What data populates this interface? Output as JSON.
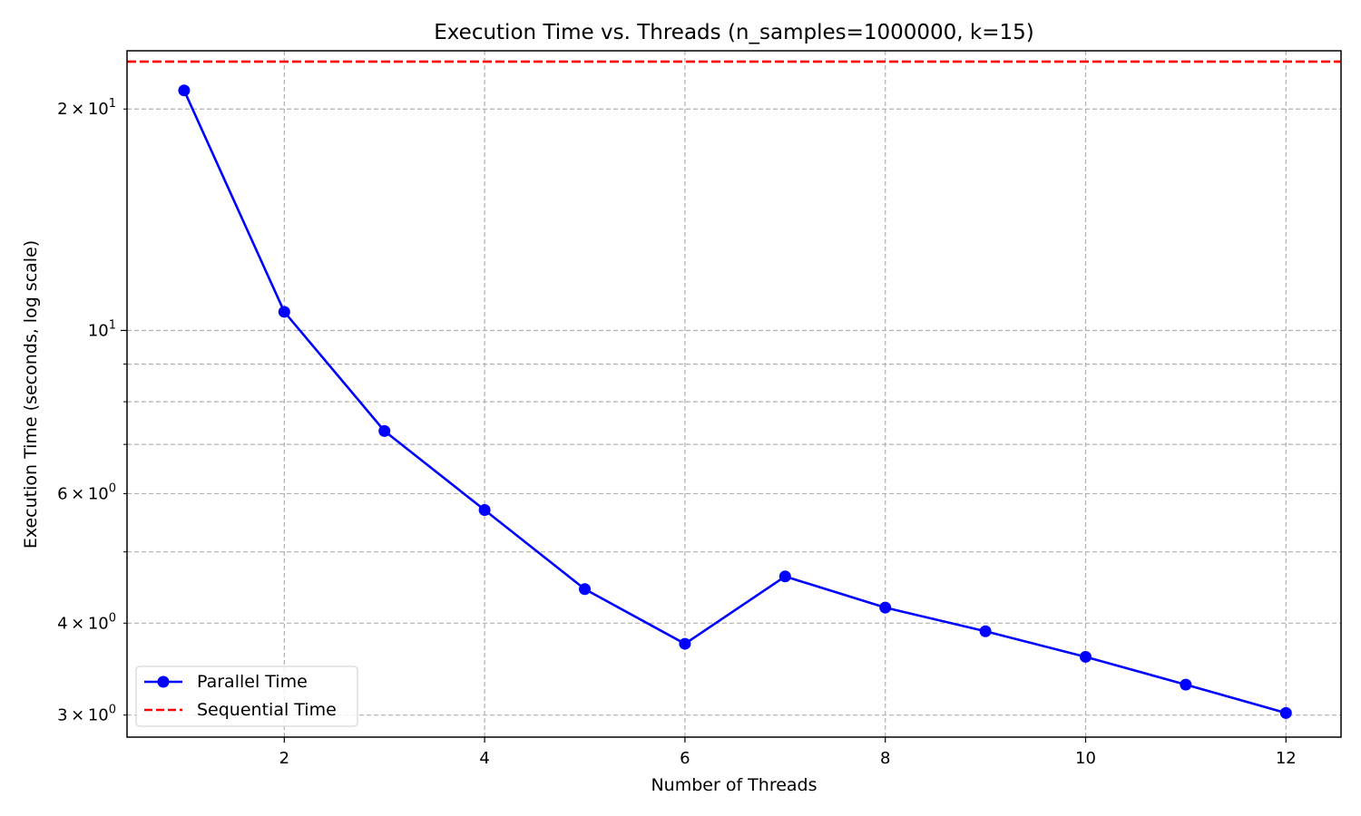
{
  "chart_data": {
    "type": "line",
    "title": "Execution Time vs. Threads (n_samples=1000000, k=15)",
    "xlabel": "Number of Threads",
    "ylabel": "Execution Time (seconds, log scale)",
    "xlim": [
      0.43,
      12.55
    ],
    "ylim": [
      2.8,
      24.0
    ],
    "y_scale": "log",
    "grid": true,
    "legend_position": "lower-left",
    "x_ticks": [
      2,
      4,
      6,
      8,
      10,
      12
    ],
    "x_tick_labels": [
      "2",
      "4",
      "6",
      "8",
      "10",
      "12"
    ],
    "y_major_ticks": [
      10
    ],
    "y_major_tick_labels": [
      {
        "base": "10",
        "exp": "1"
      }
    ],
    "y_minor_ticks": [
      3,
      4,
      5,
      6,
      7,
      8,
      9,
      20
    ],
    "y_minor_tick_labels": [
      {
        "value": 3,
        "mantissa": "3",
        "base": "10",
        "exp": "0"
      },
      {
        "value": 4,
        "mantissa": "4",
        "base": "10",
        "exp": "0"
      },
      {
        "value": 6,
        "mantissa": "6",
        "base": "10",
        "exp": "0"
      },
      {
        "value": 20,
        "mantissa": "2",
        "base": "10",
        "exp": "1"
      }
    ],
    "series": [
      {
        "name": "Parallel Time",
        "color": "#0000ff",
        "style": "solid",
        "marker": "circle",
        "x": [
          1,
          2,
          3,
          4,
          5,
          6,
          7,
          8,
          9,
          10,
          11,
          12
        ],
        "values": [
          21.2,
          10.6,
          7.3,
          5.7,
          4.45,
          3.75,
          4.63,
          4.2,
          3.9,
          3.6,
          3.3,
          3.02
        ]
      },
      {
        "name": "Sequential Time",
        "color": "#ff0000",
        "style": "dashed",
        "marker": "none",
        "values": [
          23.2
        ]
      }
    ]
  }
}
